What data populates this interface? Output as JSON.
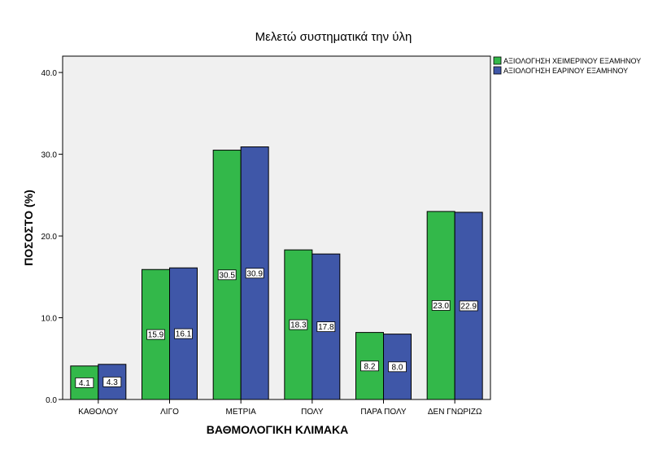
{
  "chart_data": {
    "type": "bar",
    "title": "Μελετώ συστηματικά την ύλη",
    "xlabel": "ΒΑΘΜΟΛΟΓΙΚΗ ΚΛΙΜΑΚΑ",
    "ylabel": "ΠΟΣΟΣΤΟ (%)",
    "ylim": [
      0,
      42
    ],
    "yticks": [
      "0.0",
      "10.0",
      "20.0",
      "30.0",
      "40.0"
    ],
    "categories": [
      "ΚΑΘΟΛΟΥ",
      "ΛΙΓΟ",
      "ΜΕΤΡΙΑ",
      "ΠΟΛΥ",
      "ΠΑΡΑ ΠΟΛΥ",
      "ΔΕΝ ΓΝΩΡΙΖΩ"
    ],
    "series": [
      {
        "name": "ΑΞΙΟΛΟΓΗΣΗ ΧΕΙΜΕΡΙΝΟΥ ΕΞΑΜΗΝΟΥ",
        "color": "#33b84a",
        "values": [
          4.1,
          15.9,
          30.5,
          18.3,
          8.2,
          23.0
        ],
        "labels": [
          "4.1",
          "15.9",
          "30.5",
          "18.3",
          "8.2",
          "23.0"
        ]
      },
      {
        "name": "ΑΞΙΟΛΟΓΗΣΗ ΕΑΡΙΝΟΥ ΕΞΑΜΗΝΟΥ",
        "color": "#3f57a8",
        "values": [
          4.3,
          16.1,
          30.9,
          17.8,
          8.0,
          22.9
        ],
        "labels": [
          "4.3",
          "16.1",
          "30.9",
          "17.8",
          "8.0",
          "22.9"
        ]
      }
    ],
    "grid": false,
    "legend_position": "top-right",
    "plot_background": "#f0f0f0"
  }
}
